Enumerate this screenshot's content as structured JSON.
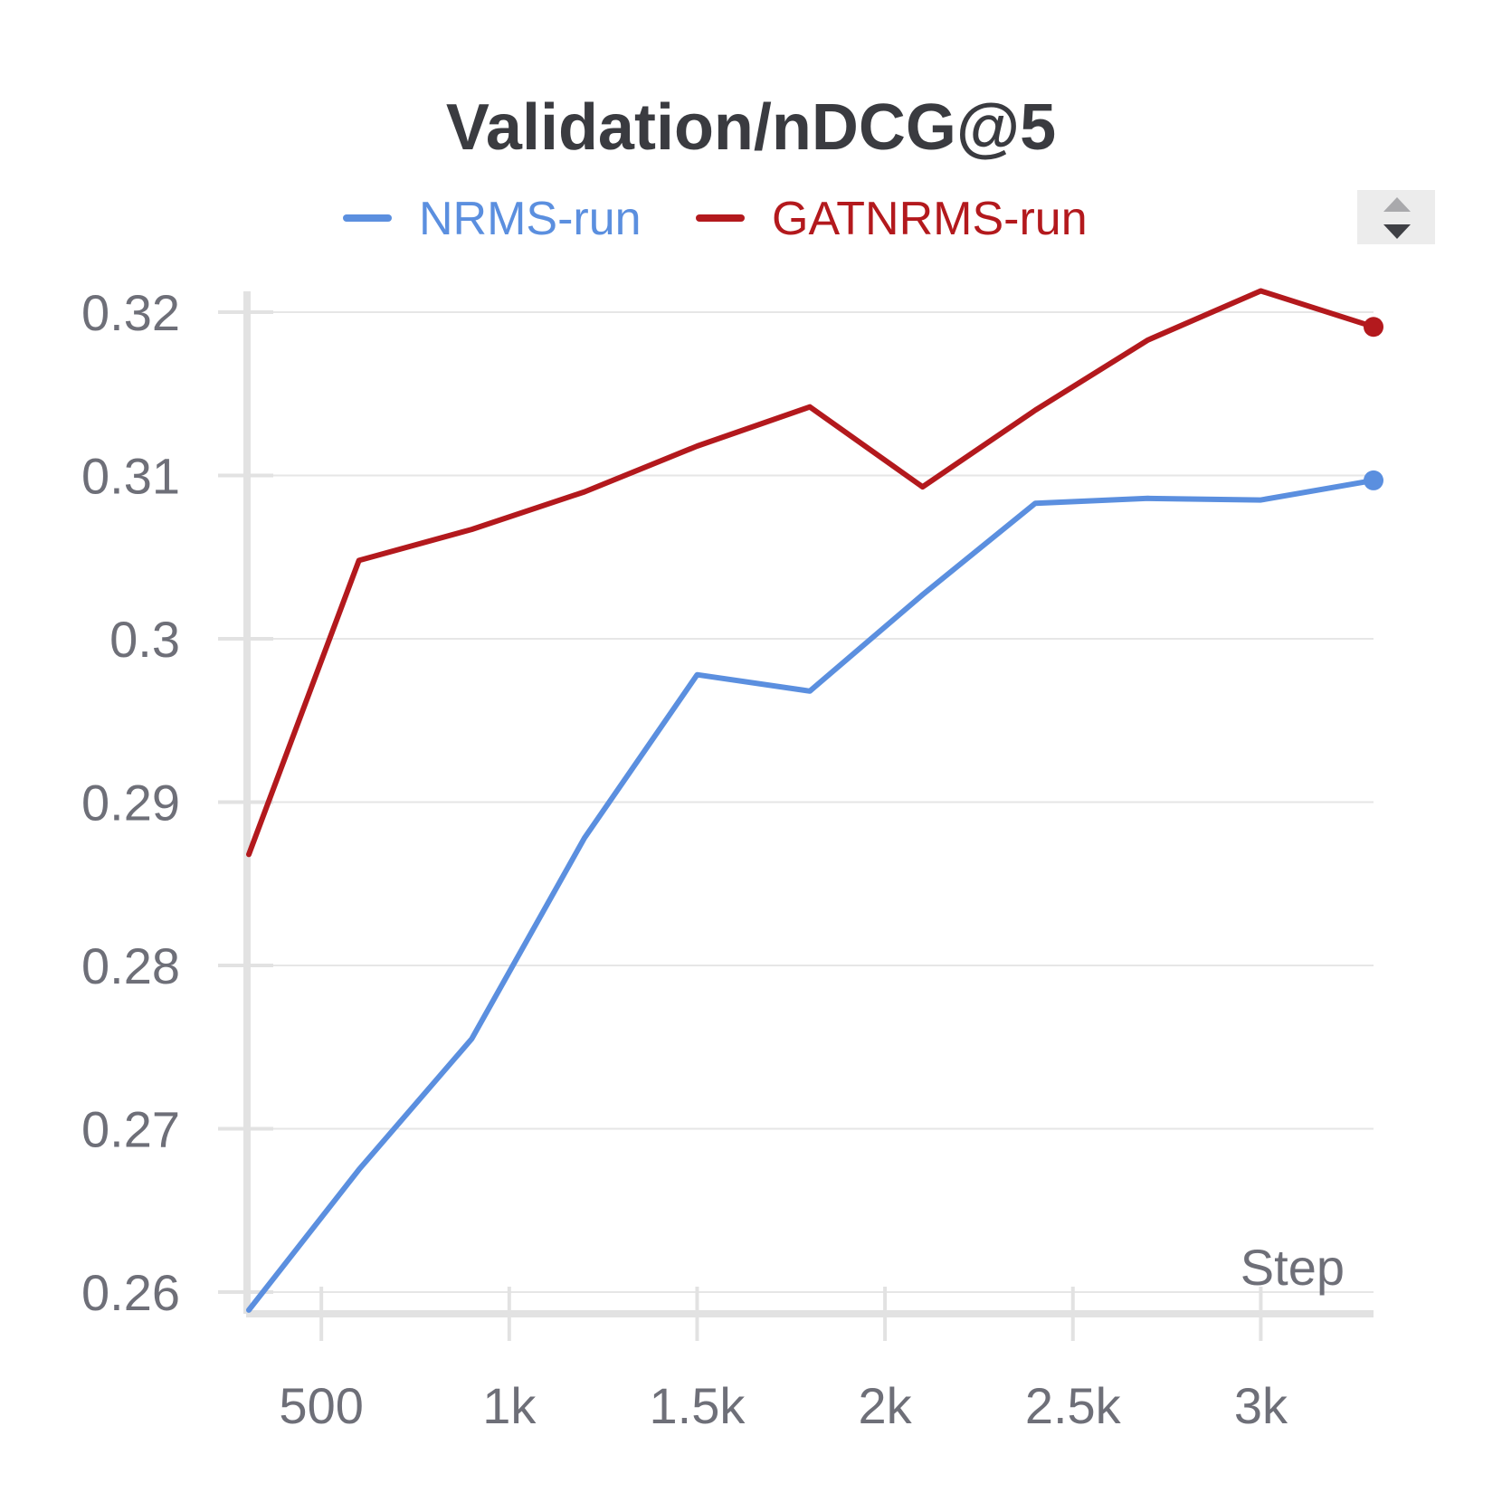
{
  "chart_data": {
    "type": "line",
    "title": "Validation/nDCG@5",
    "xlabel": "Step",
    "ylabel": "",
    "xlim": [
      307,
      3300
    ],
    "ylim": [
      0.2588,
      0.3228
    ],
    "xticks": [
      500,
      1000,
      1500,
      2000,
      2500,
      3000
    ],
    "xtick_labels": [
      "500",
      "1k",
      "1.5k",
      "2k",
      "2.5k",
      "3k"
    ],
    "yticks": [
      0.26,
      0.27,
      0.28,
      0.29,
      0.3,
      0.31,
      0.32
    ],
    "ytick_labels": [
      "0.26",
      "0.27",
      "0.28",
      "0.29",
      "0.3",
      "0.31",
      "0.32"
    ],
    "grid": true,
    "legend_position": "top-center",
    "series": [
      {
        "name": "NRMS-run",
        "color": "#5b8fdf",
        "x": [
          307,
          600,
          900,
          1200,
          1500,
          1800,
          2100,
          2400,
          2700,
          3000,
          3300
        ],
        "y": [
          0.2589,
          0.2675,
          0.2755,
          0.2878,
          0.2978,
          0.2968,
          0.3027,
          0.3083,
          0.3086,
          0.3085,
          0.3097
        ]
      },
      {
        "name": "GATNRMS-run",
        "color": "#b3191d",
        "x": [
          307,
          600,
          900,
          1200,
          1500,
          1800,
          2100,
          2400,
          2700,
          3000,
          3300
        ],
        "y": [
          0.2868,
          0.3048,
          0.3067,
          0.309,
          0.3118,
          0.3142,
          0.3093,
          0.314,
          0.3183,
          0.3213,
          0.3191
        ]
      }
    ]
  },
  "controls": {
    "legend_scroll_icon": "up-down-arrows-icon"
  }
}
